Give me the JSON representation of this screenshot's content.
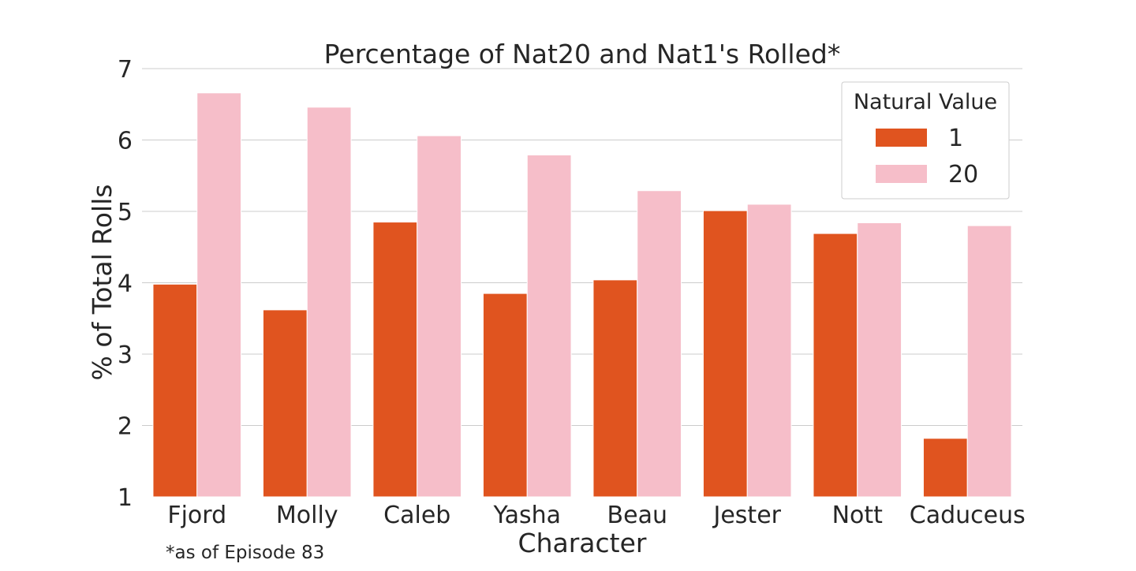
{
  "chart_data": {
    "type": "bar",
    "title": "Percentage of Nat20 and Nat1's Rolled*",
    "xlabel": "Character",
    "ylabel": "% of Total Rolls",
    "footnote": "*as of Episode 83",
    "categories": [
      "Fjord",
      "Molly",
      "Caleb",
      "Yasha",
      "Beau",
      "Jester",
      "Nott",
      "Caduceus"
    ],
    "series": [
      {
        "name": "1",
        "color": "#E0541F",
        "values": [
          3.98,
          3.62,
          4.85,
          3.85,
          4.04,
          5.01,
          4.69,
          1.82
        ]
      },
      {
        "name": "20",
        "color": "#F6BEC9",
        "values": [
          6.66,
          6.46,
          6.06,
          5.79,
          5.29,
          5.1,
          4.84,
          4.8
        ]
      }
    ],
    "ylim": [
      1,
      7
    ],
    "yticks": [
      1,
      2,
      3,
      4,
      5,
      6,
      7
    ],
    "grid": true,
    "grid_axis": "y",
    "legend": {
      "title": "Natural Value",
      "placement": "top-right"
    }
  }
}
